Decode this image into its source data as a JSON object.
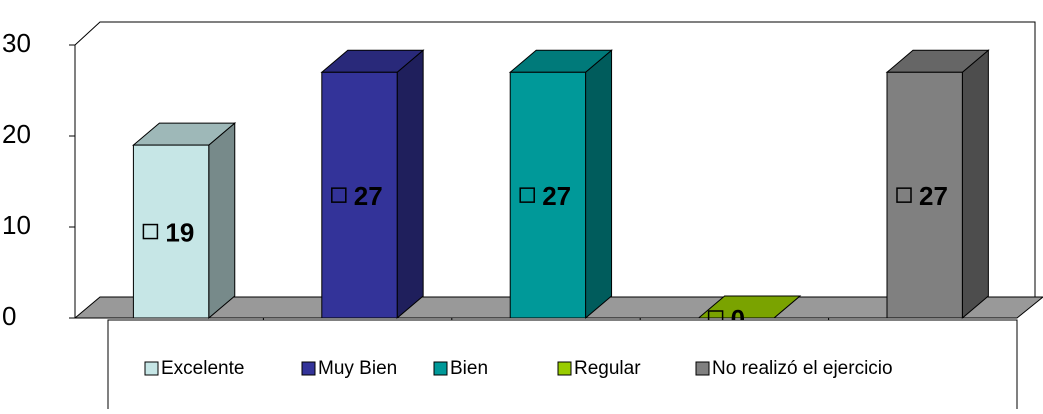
{
  "chart_data": {
    "type": "bar3d",
    "categories": [
      "Excelente",
      "Muy Bien",
      "Bien",
      "Regular",
      "No realizó el ejercicio"
    ],
    "values": [
      19,
      27,
      27,
      0,
      27
    ],
    "colors": [
      "#c6e6e6",
      "#333399",
      "#009999",
      "#99cc00",
      "#808080"
    ],
    "ylim": [
      0,
      30
    ],
    "yticks": [
      0,
      10,
      20,
      30
    ]
  }
}
